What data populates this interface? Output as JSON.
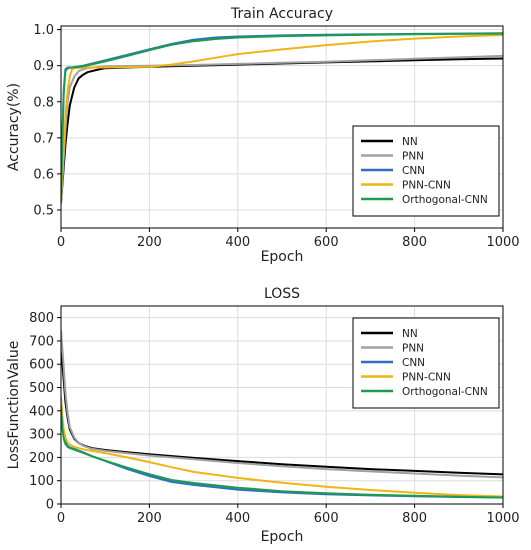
{
  "chart_data": [
    {
      "type": "line",
      "title": "Train Accuracy",
      "xlabel": "Epoch",
      "ylabel": "Accuracy(%)",
      "xlim": [
        0,
        1000
      ],
      "ylim": [
        0.45,
        1.01
      ],
      "xticks": [
        0,
        200,
        400,
        600,
        800,
        1000
      ],
      "yticks": [
        0.5,
        0.6,
        0.7,
        0.8,
        0.9,
        1.0
      ],
      "ytick_labels": [
        "0.5",
        "0.6",
        "0.7",
        "0.8",
        "0.9",
        "1.0"
      ],
      "grid": true,
      "legend": "bottom-right",
      "series": [
        {
          "name": "NN",
          "color": "#000000",
          "points": [
            [
              0,
              0.52
            ],
            [
              5,
              0.6
            ],
            [
              10,
              0.68
            ],
            [
              15,
              0.74
            ],
            [
              20,
              0.79
            ],
            [
              30,
              0.84
            ],
            [
              40,
              0.865
            ],
            [
              50,
              0.875
            ],
            [
              60,
              0.882
            ],
            [
              80,
              0.888
            ],
            [
              100,
              0.893
            ],
            [
              150,
              0.895
            ],
            [
              200,
              0.897
            ],
            [
              300,
              0.9
            ],
            [
              400,
              0.903
            ],
            [
              500,
              0.906
            ],
            [
              600,
              0.909
            ],
            [
              700,
              0.912
            ],
            [
              800,
              0.915
            ],
            [
              900,
              0.918
            ],
            [
              1000,
              0.92
            ]
          ]
        },
        {
          "name": "PNN",
          "color": "#a0a0a0",
          "points": [
            [
              0,
              0.52
            ],
            [
              5,
              0.62
            ],
            [
              10,
              0.72
            ],
            [
              15,
              0.8
            ],
            [
              20,
              0.84
            ],
            [
              30,
              0.87
            ],
            [
              40,
              0.885
            ],
            [
              50,
              0.89
            ],
            [
              60,
              0.893
            ],
            [
              80,
              0.896
            ],
            [
              100,
              0.898
            ],
            [
              200,
              0.9
            ],
            [
              300,
              0.902
            ],
            [
              400,
              0.905
            ],
            [
              500,
              0.908
            ],
            [
              600,
              0.911
            ],
            [
              700,
              0.915
            ],
            [
              800,
              0.919
            ],
            [
              900,
              0.923
            ],
            [
              1000,
              0.927
            ]
          ]
        },
        {
          "name": "CNN",
          "color": "#2f6fbf",
          "points": [
            [
              0,
              0.52
            ],
            [
              3,
              0.7
            ],
            [
              6,
              0.83
            ],
            [
              10,
              0.89
            ],
            [
              15,
              0.895
            ],
            [
              25,
              0.895
            ],
            [
              50,
              0.9
            ],
            [
              100,
              0.915
            ],
            [
              150,
              0.93
            ],
            [
              200,
              0.945
            ],
            [
              250,
              0.96
            ],
            [
              300,
              0.972
            ],
            [
              350,
              0.978
            ],
            [
              400,
              0.981
            ],
            [
              500,
              0.984
            ],
            [
              600,
              0.986
            ],
            [
              700,
              0.987
            ],
            [
              800,
              0.988
            ],
            [
              900,
              0.989
            ],
            [
              1000,
              0.99
            ]
          ]
        },
        {
          "name": "PNN-CNN",
          "color": "#f0b414",
          "points": [
            [
              0,
              0.52
            ],
            [
              3,
              0.6
            ],
            [
              6,
              0.68
            ],
            [
              10,
              0.76
            ],
            [
              15,
              0.83
            ],
            [
              20,
              0.87
            ],
            [
              25,
              0.89
            ],
            [
              30,
              0.893
            ],
            [
              50,
              0.895
            ],
            [
              100,
              0.895
            ],
            [
              150,
              0.896
            ],
            [
              200,
              0.897
            ],
            [
              250,
              0.903
            ],
            [
              300,
              0.912
            ],
            [
              350,
              0.922
            ],
            [
              400,
              0.932
            ],
            [
              500,
              0.945
            ],
            [
              600,
              0.957
            ],
            [
              700,
              0.967
            ],
            [
              800,
              0.975
            ],
            [
              900,
              0.981
            ],
            [
              1000,
              0.985
            ]
          ]
        },
        {
          "name": "Orthogonal-CNN",
          "color": "#1a9e4b",
          "points": [
            [
              0,
              0.52
            ],
            [
              3,
              0.69
            ],
            [
              6,
              0.82
            ],
            [
              10,
              0.885
            ],
            [
              15,
              0.893
            ],
            [
              25,
              0.895
            ],
            [
              50,
              0.898
            ],
            [
              100,
              0.912
            ],
            [
              150,
              0.927
            ],
            [
              200,
              0.943
            ],
            [
              250,
              0.958
            ],
            [
              300,
              0.968
            ],
            [
              350,
              0.974
            ],
            [
              400,
              0.978
            ],
            [
              500,
              0.982
            ],
            [
              600,
              0.984
            ],
            [
              700,
              0.986
            ],
            [
              800,
              0.987
            ],
            [
              900,
              0.988
            ],
            [
              1000,
              0.989
            ]
          ]
        }
      ]
    },
    {
      "type": "line",
      "title": "LOSS",
      "xlabel": "Epoch",
      "ylabel": "LossFunctionValue",
      "xlim": [
        0,
        1000
      ],
      "ylim": [
        0,
        850
      ],
      "xticks": [
        0,
        200,
        400,
        600,
        800,
        1000
      ],
      "yticks": [
        0,
        100,
        200,
        300,
        400,
        500,
        600,
        700,
        800
      ],
      "grid": true,
      "legend": "top-right",
      "series": [
        {
          "name": "NN",
          "color": "#000000",
          "points": [
            [
              0,
              690
            ],
            [
              5,
              560
            ],
            [
              10,
              440
            ],
            [
              15,
              370
            ],
            [
              20,
              320
            ],
            [
              30,
              280
            ],
            [
              40,
              262
            ],
            [
              50,
              252
            ],
            [
              70,
              240
            ],
            [
              100,
              232
            ],
            [
              150,
              222
            ],
            [
              200,
              214
            ],
            [
              300,
              198
            ],
            [
              400,
              184
            ],
            [
              500,
              171
            ],
            [
              600,
              160
            ],
            [
              700,
              150
            ],
            [
              800,
              142
            ],
            [
              900,
              134
            ],
            [
              1000,
              127
            ]
          ]
        },
        {
          "name": "PNN",
          "color": "#a0a0a0",
          "points": [
            [
              0,
              745
            ],
            [
              5,
              620
            ],
            [
              10,
              480
            ],
            [
              15,
              390
            ],
            [
              20,
              330
            ],
            [
              30,
              285
            ],
            [
              40,
              262
            ],
            [
              50,
              250
            ],
            [
              70,
              237
            ],
            [
              100,
              228
            ],
            [
              150,
              218
            ],
            [
              200,
              208
            ],
            [
              300,
              192
            ],
            [
              400,
              176
            ],
            [
              500,
              162
            ],
            [
              600,
              150
            ],
            [
              700,
              140
            ],
            [
              800,
              131
            ],
            [
              900,
              122
            ],
            [
              1000,
              114
            ]
          ]
        },
        {
          "name": "CNN",
          "color": "#2f6fbf",
          "points": [
            [
              0,
              410
            ],
            [
              3,
              340
            ],
            [
              6,
              290
            ],
            [
              10,
              265
            ],
            [
              15,
              250
            ],
            [
              20,
              243
            ],
            [
              30,
              236
            ],
            [
              50,
              222
            ],
            [
              70,
              205
            ],
            [
              100,
              185
            ],
            [
              150,
              150
            ],
            [
              200,
              120
            ],
            [
              250,
              95
            ],
            [
              300,
              82
            ],
            [
              400,
              62
            ],
            [
              500,
              50
            ],
            [
              600,
              42
            ],
            [
              700,
              37
            ],
            [
              800,
              33
            ],
            [
              900,
              30
            ],
            [
              1000,
              28
            ]
          ]
        },
        {
          "name": "PNN-CNN",
          "color": "#f0b414",
          "points": [
            [
              0,
              460
            ],
            [
              3,
              380
            ],
            [
              6,
              320
            ],
            [
              10,
              285
            ],
            [
              15,
              265
            ],
            [
              20,
              255
            ],
            [
              30,
              245
            ],
            [
              50,
              235
            ],
            [
              70,
              228
            ],
            [
              100,
              218
            ],
            [
              150,
              200
            ],
            [
              200,
              180
            ],
            [
              250,
              158
            ],
            [
              300,
              138
            ],
            [
              400,
              112
            ],
            [
              500,
              91
            ],
            [
              600,
              74
            ],
            [
              700,
              60
            ],
            [
              800,
              48
            ],
            [
              900,
              38
            ],
            [
              1000,
              32
            ]
          ]
        },
        {
          "name": "Orthogonal-CNN",
          "color": "#1a9e4b",
          "points": [
            [
              0,
              420
            ],
            [
              3,
              330
            ],
            [
              6,
              280
            ],
            [
              10,
              258
            ],
            [
              15,
              245
            ],
            [
              20,
              240
            ],
            [
              30,
              233
            ],
            [
              50,
              220
            ],
            [
              70,
              205
            ],
            [
              100,
              186
            ],
            [
              150,
              156
            ],
            [
              200,
              128
            ],
            [
              250,
              103
            ],
            [
              300,
              90
            ],
            [
              400,
              70
            ],
            [
              500,
              55
            ],
            [
              600,
              46
            ],
            [
              700,
              40
            ],
            [
              800,
              35
            ],
            [
              900,
              31
            ],
            [
              1000,
              28
            ]
          ]
        }
      ]
    }
  ]
}
